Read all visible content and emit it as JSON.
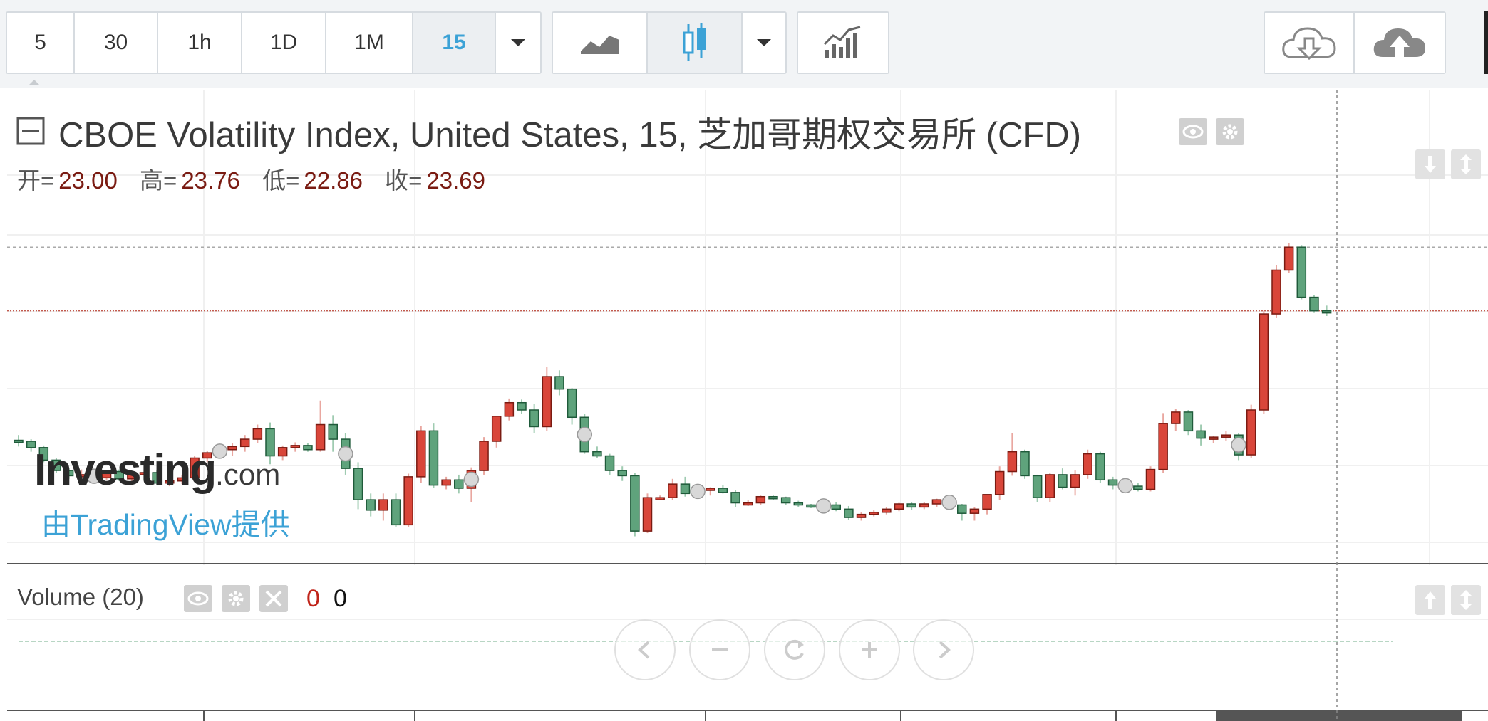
{
  "toolbar": {
    "intervals": [
      "5",
      "30",
      "1h",
      "1D",
      "1M",
      "15"
    ],
    "active_interval": "15"
  },
  "legend": {
    "title": "CBOE Volatility Index, United States, 15, 芝加哥期权交易所 (CFD)",
    "open_label": "开=",
    "open_value": "23.00",
    "high_label": "高=",
    "high_value": "23.76",
    "low_label": "低=",
    "low_value": "22.86",
    "close_label": "收=",
    "close_value": "23.69"
  },
  "branding": {
    "name": "Investing",
    "suffix": ".com",
    "provider": "由TradingView提供"
  },
  "volume": {
    "label": "Volume (20)",
    "value_a": "0",
    "value_b": "0"
  },
  "colors": {
    "up": "#d9463a",
    "down": "#5fa37c",
    "accent": "#3ca2d6"
  },
  "chart_data": {
    "type": "candlestick",
    "title": "CBOE Volatility Index, United States, 15, 芝加哥期权交易所 (CFD)",
    "last": {
      "open": 23.0,
      "high": 23.76,
      "low": 22.86,
      "close": 23.69
    },
    "ohlc": [
      [
        21.91,
        21.96,
        21.85,
        21.9
      ],
      [
        21.9,
        21.92,
        21.8,
        21.84
      ],
      [
        21.84,
        21.86,
        21.7,
        21.72
      ],
      [
        21.72,
        21.74,
        21.6,
        21.62
      ],
      [
        21.62,
        21.64,
        21.54,
        21.57
      ],
      [
        21.57,
        21.63,
        21.52,
        21.58
      ],
      [
        21.58,
        21.6,
        21.52,
        21.55
      ],
      [
        21.55,
        21.62,
        21.53,
        21.61
      ],
      [
        21.61,
        21.63,
        21.52,
        21.54
      ],
      [
        21.54,
        21.6,
        21.5,
        21.58
      ],
      [
        21.58,
        21.62,
        21.54,
        21.6
      ],
      [
        21.6,
        21.62,
        21.48,
        21.5
      ],
      [
        21.5,
        21.56,
        21.47,
        21.52
      ],
      [
        21.52,
        21.58,
        21.49,
        21.55
      ],
      [
        21.55,
        21.76,
        21.53,
        21.74
      ],
      [
        21.74,
        21.81,
        21.7,
        21.79
      ],
      [
        21.79,
        21.85,
        21.74,
        21.82
      ],
      [
        21.82,
        21.88,
        21.76,
        21.85
      ],
      [
        21.85,
        21.96,
        21.8,
        21.92
      ],
      [
        21.92,
        22.06,
        21.88,
        22.02
      ],
      [
        22.02,
        22.08,
        21.68,
        21.76
      ],
      [
        21.76,
        21.86,
        21.72,
        21.84
      ],
      [
        21.84,
        21.89,
        21.8,
        21.86
      ],
      [
        21.86,
        21.88,
        21.8,
        21.82
      ],
      [
        21.82,
        22.29,
        21.8,
        22.06
      ],
      [
        22.06,
        22.15,
        21.8,
        21.92
      ],
      [
        21.92,
        21.98,
        21.58,
        21.64
      ],
      [
        21.64,
        21.7,
        21.25,
        21.34
      ],
      [
        21.34,
        21.4,
        21.18,
        21.24
      ],
      [
        21.24,
        21.4,
        21.14,
        21.34
      ],
      [
        21.34,
        21.4,
        21.08,
        21.1
      ],
      [
        21.1,
        21.59,
        21.08,
        21.56
      ],
      [
        21.56,
        22.05,
        21.5,
        22.0
      ],
      [
        22.0,
        22.07,
        21.45,
        21.48
      ],
      [
        21.48,
        21.56,
        21.44,
        21.53
      ],
      [
        21.53,
        21.58,
        21.4,
        21.45
      ],
      [
        21.45,
        21.65,
        21.32,
        21.62
      ],
      [
        21.62,
        21.94,
        21.58,
        21.9
      ],
      [
        21.9,
        22.14,
        21.84,
        22.14
      ],
      [
        22.14,
        22.31,
        22.1,
        22.27
      ],
      [
        22.27,
        22.3,
        22.16,
        22.2
      ],
      [
        22.2,
        22.26,
        21.98,
        22.04
      ],
      [
        22.04,
        22.61,
        22.0,
        22.52
      ],
      [
        22.52,
        22.58,
        22.34,
        22.4
      ],
      [
        22.4,
        22.41,
        22.06,
        22.13
      ],
      [
        22.13,
        22.16,
        21.78,
        21.8
      ],
      [
        21.8,
        21.85,
        21.74,
        21.76
      ],
      [
        21.76,
        21.78,
        21.58,
        21.62
      ],
      [
        21.62,
        21.66,
        21.52,
        21.57
      ],
      [
        21.57,
        21.6,
        20.99,
        21.04
      ],
      [
        21.04,
        21.4,
        21.02,
        21.36
      ],
      [
        21.36,
        21.38,
        21.34,
        21.36
      ],
      [
        21.36,
        21.54,
        21.34,
        21.49
      ],
      [
        21.49,
        21.56,
        21.37,
        21.4
      ],
      [
        21.4,
        21.45,
        21.36,
        21.44
      ],
      [
        21.44,
        21.46,
        21.38,
        21.45
      ],
      [
        21.45,
        21.48,
        21.4,
        21.41
      ],
      [
        21.41,
        21.43,
        21.27,
        21.31
      ],
      [
        21.31,
        21.34,
        21.28,
        21.31
      ],
      [
        21.31,
        21.38,
        21.29,
        21.37
      ],
      [
        21.37,
        21.38,
        21.34,
        21.36
      ],
      [
        21.36,
        21.37,
        21.29,
        21.31
      ],
      [
        21.31,
        21.33,
        21.27,
        21.29
      ],
      [
        21.29,
        21.3,
        21.26,
        21.27
      ],
      [
        21.27,
        21.3,
        21.24,
        21.29
      ],
      [
        21.29,
        21.32,
        21.23,
        21.25
      ],
      [
        21.25,
        21.28,
        21.15,
        21.17
      ],
      [
        21.17,
        21.22,
        21.14,
        21.2
      ],
      [
        21.2,
        21.24,
        21.18,
        21.22
      ],
      [
        21.22,
        21.27,
        21.2,
        21.25
      ],
      [
        21.25,
        21.31,
        21.23,
        21.3
      ],
      [
        21.3,
        21.32,
        21.24,
        21.27
      ],
      [
        21.27,
        21.32,
        21.25,
        21.3
      ],
      [
        21.3,
        21.35,
        21.27,
        21.34
      ],
      [
        21.34,
        21.36,
        21.28,
        21.29
      ],
      [
        21.29,
        21.3,
        21.14,
        21.21
      ],
      [
        21.21,
        21.27,
        21.14,
        21.25
      ],
      [
        21.25,
        21.39,
        21.2,
        21.39
      ],
      [
        21.39,
        21.66,
        21.34,
        21.61
      ],
      [
        21.61,
        21.98,
        21.57,
        21.8
      ],
      [
        21.8,
        21.82,
        21.54,
        21.57
      ],
      [
        21.57,
        21.58,
        21.32,
        21.36
      ],
      [
        21.36,
        21.6,
        21.32,
        21.58
      ],
      [
        21.58,
        21.64,
        21.44,
        21.46
      ],
      [
        21.46,
        21.62,
        21.38,
        21.58
      ],
      [
        21.58,
        21.82,
        21.54,
        21.78
      ],
      [
        21.78,
        21.8,
        21.5,
        21.53
      ],
      [
        21.53,
        21.56,
        21.44,
        21.48
      ],
      [
        21.48,
        21.52,
        21.44,
        21.47
      ],
      [
        21.47,
        21.5,
        21.42,
        21.44
      ],
      [
        21.44,
        21.66,
        21.42,
        21.63
      ],
      [
        21.63,
        22.17,
        21.6,
        22.07
      ],
      [
        22.07,
        22.21,
        22.0,
        22.18
      ],
      [
        22.18,
        22.2,
        21.96,
        22.0
      ],
      [
        22.0,
        22.06,
        21.86,
        21.93
      ],
      [
        21.93,
        21.95,
        21.88,
        21.94
      ],
      [
        21.94,
        22.0,
        21.9,
        21.96
      ],
      [
        21.96,
        21.98,
        21.72,
        21.77
      ],
      [
        21.77,
        22.25,
        21.74,
        22.2
      ],
      [
        22.2,
        23.15,
        22.16,
        23.12
      ],
      [
        23.12,
        23.59,
        23.08,
        23.54
      ],
      [
        23.54,
        23.8,
        23.51,
        23.76
      ],
      [
        23.76,
        23.78,
        23.26,
        23.28
      ],
      [
        23.28,
        23.3,
        23.13,
        23.15
      ],
      [
        23.15,
        23.2,
        23.1,
        23.14
      ]
    ],
    "ylabel": "",
    "xlabel": ""
  }
}
